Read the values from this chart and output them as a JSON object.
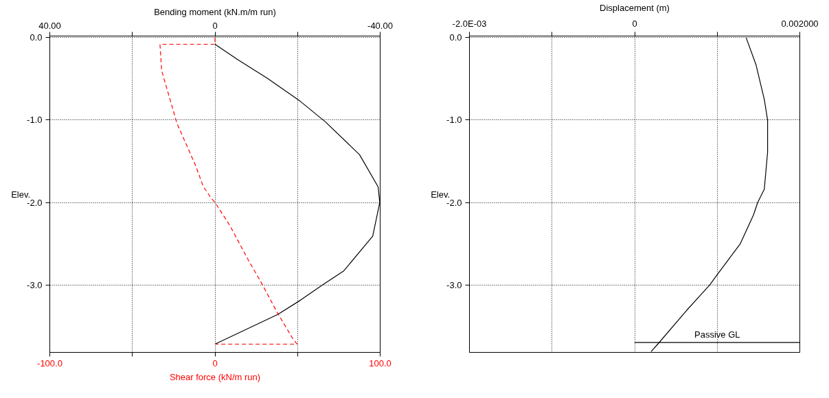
{
  "chart_data": [
    {
      "type": "line",
      "xlabel": "Shear force (kN/m run)",
      "x2label": "Bending moment (kN.m/m run)",
      "ylabel": "Elev.",
      "xlim": [
        -100,
        100
      ],
      "xticks": [
        {
          "value": -100,
          "label": "-100.0"
        },
        {
          "value": -50,
          "label": null
        },
        0,
        {
          "value": 50,
          "label": null
        },
        {
          "value": 100,
          "label": "100.0"
        }
      ],
      "x2lim": [
        40,
        -40
      ],
      "x2ticks": [
        {
          "value": 40,
          "label": "40.00"
        },
        {
          "value": 20,
          "label": null
        },
        0,
        {
          "value": -20,
          "label": null
        },
        {
          "value": -40,
          "label": "-40.00"
        }
      ],
      "ylim": [
        -3.82,
        0.02
      ],
      "yticks": [
        {
          "value": 0,
          "label": "0.0"
        },
        {
          "value": -1,
          "label": "-1.0"
        },
        {
          "value": -2,
          "label": "-2.0"
        },
        {
          "value": -3,
          "label": "-3.0"
        }
      ],
      "grid": true,
      "series": [
        {
          "color": "#000000",
          "axis": "x2",
          "line_style": "solid",
          "x": [
            0,
            -5.6,
            -12.6,
            -20.6,
            -26.7,
            -35.0,
            -39.5,
            -39.9,
            -38.2,
            -31.2,
            -26.1,
            -20.6,
            -15.2,
            0
          ],
          "values": [
            -0.08,
            -0.27,
            -0.49,
            -0.77,
            -1.02,
            -1.42,
            -1.81,
            -2.0,
            -2.41,
            -2.83,
            -3.0,
            -3.19,
            -3.36,
            -3.72
          ]
        },
        {
          "color": "#ff0000",
          "line_style": "dashed",
          "x": [
            0,
            0,
            -33.3,
            -32.3,
            -23.0,
            -11.8,
            -7.0,
            -2.2,
            0,
            9.0,
            20.2,
            28.2,
            37.8,
            47.3,
            49.7,
            0
          ],
          "values": [
            0.0,
            -0.08,
            -0.08,
            -0.4,
            -1.04,
            -1.55,
            -1.81,
            -1.95,
            -2.0,
            -2.28,
            -2.7,
            -2.98,
            -3.34,
            -3.66,
            -3.72,
            -3.72
          ]
        }
      ]
    },
    {
      "type": "line",
      "xlabel": "Displacement (m)",
      "ylabel": "Elev.",
      "xlim": [
        -0.002,
        0.002
      ],
      "xticks": [
        {
          "value": -0.002,
          "label": "-2.0E-03"
        },
        {
          "value": -0.001,
          "label": null
        },
        0,
        {
          "value": 0.001,
          "label": null
        },
        {
          "value": 0.002,
          "label": "0.002000"
        }
      ],
      "ylim": [
        -3.82,
        0.02
      ],
      "yticks": [
        {
          "value": 0,
          "label": "0.0"
        },
        {
          "value": -1,
          "label": "-1.0"
        },
        {
          "value": -2,
          "label": "-2.0"
        },
        {
          "value": -3,
          "label": "-3.0"
        }
      ],
      "grid": true,
      "series": [
        {
          "color": "#000000",
          "line_style": "solid",
          "x": [
            0.00135,
            0.00147,
            0.00157,
            0.00161,
            0.00161,
            0.00157,
            0.00149,
            0.00144,
            0.00128,
            0.00099,
            0.00091,
            0.00063,
            0.00028,
            0.0002
          ],
          "values": [
            0.0,
            -0.33,
            -0.75,
            -1.0,
            -1.39,
            -1.84,
            -2.0,
            -2.15,
            -2.5,
            -2.89,
            -3.0,
            -3.31,
            -3.72,
            -3.81
          ]
        },
        {
          "name": "Passive GL",
          "color": "#000000",
          "line_style": "solid",
          "x": [
            0,
            0.002
          ],
          "values": [
            -3.7,
            -3.7
          ]
        }
      ]
    }
  ]
}
